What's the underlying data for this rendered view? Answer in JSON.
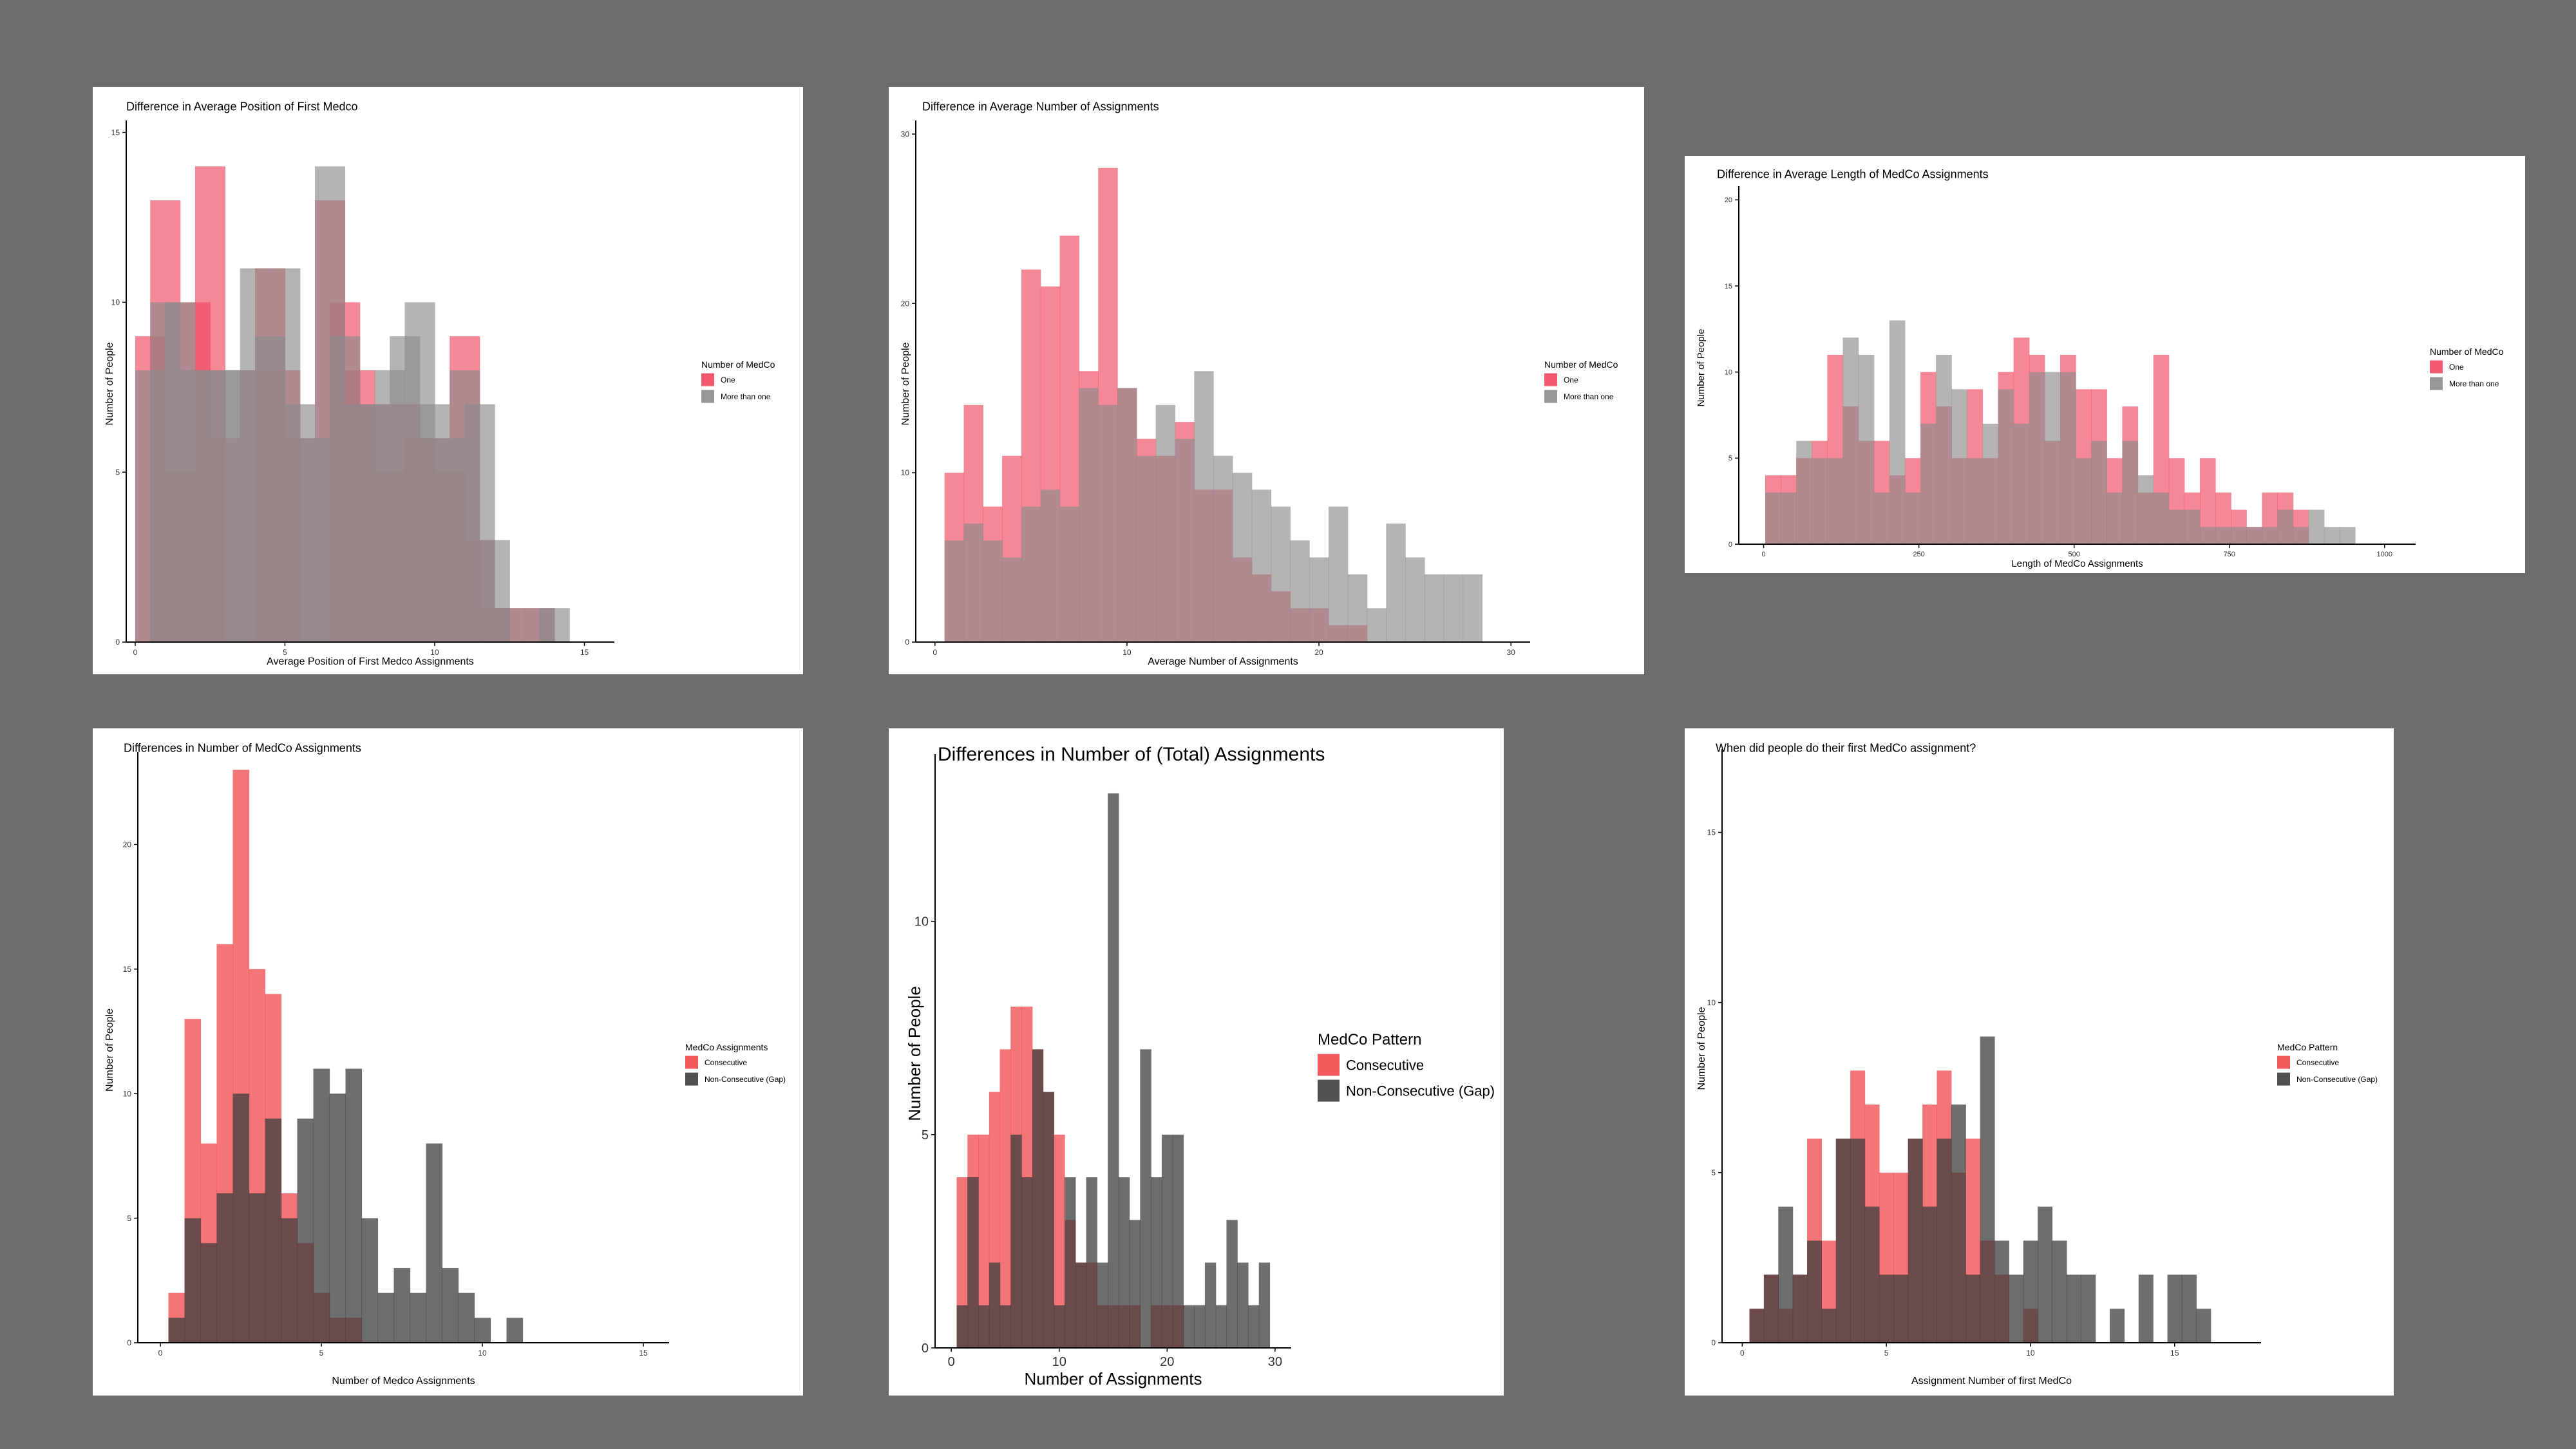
{
  "chart_data": [
    {
      "type": "bar",
      "title": "Difference in Average Position of First Medco",
      "xlabel": "Average Position of First Medco Assignments",
      "ylabel": "Number of People",
      "xlim": [
        -0.3,
        16
      ],
      "ylim": [
        0,
        15.2
      ],
      "xticks": [
        "0",
        "5",
        "10",
        "15"
      ],
      "xtick_values": [
        0,
        5,
        10,
        15
      ],
      "yticks": [
        "0",
        "5",
        "10",
        "15"
      ],
      "ytick_values": [
        0,
        5,
        10,
        15
      ],
      "grid": false,
      "legend_title": "Number of MedCo",
      "legend_position": "right",
      "series": [
        {
          "name": "One",
          "color": "#f0485f",
          "x": [
            0.5,
            1,
            1.5,
            2,
            2.5,
            3,
            3.5,
            4,
            4.5,
            5,
            5.5,
            6,
            6.5,
            7,
            7.5,
            8,
            8.5,
            9,
            9.5,
            10,
            10.5,
            11,
            11.5,
            12,
            12.5,
            13,
            13.5,
            14
          ],
          "values": [
            9,
            13,
            5,
            10,
            14,
            6,
            0,
            8,
            11,
            8,
            6,
            0,
            13,
            10,
            8,
            7,
            5,
            7,
            6,
            6,
            5,
            9,
            3,
            1,
            1,
            0,
            1,
            0
          ]
        },
        {
          "name": "More than one",
          "color": "#8c8c8c",
          "x": [
            0.5,
            1,
            1.5,
            2,
            2.5,
            3,
            3.5,
            4,
            4.5,
            5,
            5.5,
            6,
            6.5,
            7,
            7.5,
            8,
            8.5,
            9,
            9.5,
            10,
            10.5,
            11,
            11.5,
            12,
            12.5,
            13,
            13.5,
            14
          ],
          "values": [
            8,
            10,
            10,
            8,
            8,
            8,
            8,
            11,
            9,
            11,
            7,
            6,
            14,
            9,
            7,
            7,
            8,
            9,
            10,
            7,
            6,
            8,
            7,
            3,
            1,
            0,
            1,
            1
          ]
        }
      ]
    },
    {
      "type": "bar",
      "title": "Difference in Average Number of Assignments",
      "xlabel": "Average Number of Assignments",
      "ylabel": "Number of People",
      "xlim": [
        -1,
        31
      ],
      "ylim": [
        0,
        30.5
      ],
      "xticks": [
        "0",
        "10",
        "20",
        "30"
      ],
      "xtick_values": [
        0,
        10,
        20,
        30
      ],
      "yticks": [
        "0",
        "10",
        "20",
        "30"
      ],
      "ytick_values": [
        0,
        10,
        20,
        30
      ],
      "grid": false,
      "legend_title": "Number of MedCo",
      "legend_position": "right",
      "series": [
        {
          "name": "One",
          "color": "#f0485f",
          "x": [
            1,
            2,
            3,
            4,
            5,
            6,
            7,
            8,
            9,
            10,
            11,
            12,
            13,
            14,
            15,
            16,
            17,
            18,
            19,
            20,
            21,
            22,
            23,
            24,
            25,
            26,
            27,
            28
          ],
          "values": [
            10,
            14,
            8,
            11,
            22,
            21,
            24,
            16,
            28,
            15,
            12,
            11,
            13,
            9,
            9,
            5,
            4,
            3,
            2,
            2,
            1,
            1,
            0,
            0,
            0,
            0,
            0,
            0
          ]
        },
        {
          "name": "More than one",
          "color": "#8c8c8c",
          "x": [
            1,
            2,
            3,
            4,
            5,
            6,
            7,
            8,
            9,
            10,
            11,
            12,
            13,
            14,
            15,
            16,
            17,
            18,
            19,
            20,
            21,
            22,
            23,
            24,
            25,
            26,
            27,
            28
          ],
          "values": [
            6,
            7,
            6,
            5,
            8,
            9,
            8,
            15,
            14,
            15,
            11,
            14,
            12,
            16,
            11,
            10,
            9,
            8,
            6,
            5,
            8,
            4,
            2,
            7,
            5,
            4,
            4,
            4
          ]
        }
      ]
    },
    {
      "type": "bar",
      "title": "Difference in Average Length of MedCo Assignments",
      "xlabel": "Length of MedCo Assignments",
      "ylabel": "Number of People",
      "xlim": [
        -40,
        1050
      ],
      "ylim": [
        0,
        20.5
      ],
      "xticks": [
        "0",
        "250",
        "500",
        "750",
        "1000"
      ],
      "xtick_values": [
        0,
        250,
        500,
        750,
        1000
      ],
      "yticks": [
        "0",
        "5",
        "10",
        "15",
        "20"
      ],
      "ytick_values": [
        0,
        5,
        10,
        15,
        20
      ],
      "grid": false,
      "legend_title": "Number of MedCo",
      "legend_position": "right",
      "series": [
        {
          "name": "One",
          "color": "#f0485f",
          "x": [
            15,
            40,
            65,
            90,
            115,
            140,
            165,
            190,
            215,
            240,
            265,
            290,
            315,
            340,
            365,
            390,
            415,
            440,
            465,
            490,
            515,
            540,
            565,
            590,
            615,
            640,
            665,
            690,
            715,
            740,
            765,
            790,
            815,
            840,
            865,
            890,
            915,
            940
          ],
          "values": [
            4,
            4,
            5,
            6,
            11,
            8,
            6,
            6,
            4,
            5,
            10,
            8,
            5,
            9,
            5,
            10,
            12,
            11,
            6,
            11,
            9,
            9,
            5,
            8,
            3,
            11,
            5,
            3,
            5,
            3,
            2,
            1,
            3,
            3,
            2,
            0,
            0,
            0
          ]
        },
        {
          "name": "More than one",
          "color": "#8c8c8c",
          "x": [
            15,
            40,
            65,
            90,
            115,
            140,
            165,
            190,
            215,
            240,
            265,
            290,
            315,
            340,
            365,
            390,
            415,
            440,
            465,
            490,
            515,
            540,
            565,
            590,
            615,
            640,
            665,
            690,
            715,
            740,
            765,
            790,
            815,
            840,
            865,
            890,
            915,
            940
          ],
          "values": [
            3,
            3,
            6,
            5,
            5,
            12,
            11,
            3,
            13,
            3,
            7,
            11,
            9,
            5,
            7,
            9,
            7,
            10,
            10,
            10,
            5,
            6,
            3,
            6,
            4,
            3,
            2,
            2,
            1,
            1,
            1,
            1,
            1,
            2,
            1,
            2,
            1,
            1
          ]
        }
      ]
    },
    {
      "type": "bar",
      "title": "Differences in Number of MedCo Assignments",
      "xlabel": "Number of Medco Assignments",
      "ylabel": "Number of People",
      "xlim": [
        -0.7,
        15.8
      ],
      "ylim": [
        0,
        23.5
      ],
      "xticks": [
        "0",
        "5",
        "10",
        "15"
      ],
      "xtick_values": [
        0,
        5,
        10,
        15
      ],
      "yticks": [
        "0",
        "5",
        "10",
        "15",
        "20"
      ],
      "ytick_values": [
        0,
        5,
        10,
        15,
        20
      ],
      "grid": false,
      "legend_title": "MedCo Assignments",
      "legend_position": "right",
      "series": [
        {
          "name": "Consecutive",
          "color": "#f0474a",
          "x": [
            0.5,
            1,
            1.5,
            2,
            2.5,
            3,
            3.5,
            4,
            4.5,
            5,
            5.5,
            6,
            6.5,
            7,
            7.5,
            8,
            8.5,
            9,
            9.5,
            10,
            10.5,
            11
          ],
          "values": [
            2,
            13,
            8,
            16,
            23,
            15,
            14,
            6,
            4,
            2,
            1,
            1,
            0,
            0,
            0,
            0,
            0,
            0,
            0,
            0,
            0,
            0
          ]
        },
        {
          "name": "Non-Consecutive (Gap)",
          "color": "#3d3d3d",
          "x": [
            0.5,
            1,
            1.5,
            2,
            2.5,
            3,
            3.5,
            4,
            4.5,
            5,
            5.5,
            6,
            6.5,
            7,
            7.5,
            8,
            8.5,
            9,
            9.5,
            10,
            10.5,
            11
          ],
          "values": [
            1,
            5,
            4,
            6,
            10,
            6,
            9,
            5,
            9,
            11,
            10,
            11,
            5,
            2,
            3,
            2,
            8,
            3,
            2,
            1,
            0,
            1
          ]
        }
      ]
    },
    {
      "type": "bar",
      "title": "Differences in Number of (Total) Assignments",
      "xlabel": "Number of Assignments",
      "ylabel": "Number of People",
      "xlim": [
        -1.5,
        31.5
      ],
      "ylim": [
        0,
        13.8
      ],
      "xticks": [
        "0",
        "10",
        "20",
        "30"
      ],
      "xtick_values": [
        0,
        10,
        20,
        30
      ],
      "yticks": [
        "0",
        "5",
        "10"
      ],
      "ytick_values": [
        0,
        5,
        10
      ],
      "grid": false,
      "legend_title": "MedCo Pattern",
      "legend_position": "right",
      "series": [
        {
          "name": "Consecutive",
          "color": "#f0474a",
          "x": [
            1,
            2,
            3,
            4,
            5,
            6,
            7,
            8,
            9,
            10,
            11,
            12,
            13,
            14,
            15,
            16,
            17,
            18,
            19,
            20,
            21,
            22,
            23,
            24,
            25,
            26,
            27,
            28,
            29
          ],
          "values": [
            4,
            5,
            5,
            6,
            7,
            8,
            8,
            7,
            6,
            5,
            3,
            2,
            2,
            1,
            1,
            1,
            1,
            0,
            1,
            1,
            1,
            0,
            0,
            0,
            0,
            0,
            0,
            0,
            0
          ]
        },
        {
          "name": "Non-Consecutive (Gap)",
          "color": "#3d3d3d",
          "x": [
            1,
            2,
            3,
            4,
            5,
            6,
            7,
            8,
            9,
            10,
            11,
            12,
            13,
            14,
            15,
            16,
            17,
            18,
            19,
            20,
            21,
            22,
            23,
            24,
            25,
            26,
            27,
            28,
            29
          ],
          "values": [
            1,
            4,
            1,
            2,
            1,
            5,
            4,
            7,
            6,
            1,
            4,
            2,
            4,
            2,
            13,
            4,
            3,
            7,
            4,
            5,
            5,
            1,
            1,
            2,
            1,
            3,
            2,
            1,
            2
          ]
        }
      ]
    },
    {
      "type": "bar",
      "title": "When did people do their first MedCo assignment?",
      "xlabel": "Assignment Number of first MedCo",
      "ylabel": "Number of People",
      "xlim": [
        -0.7,
        18
      ],
      "ylim": [
        0,
        17.3
      ],
      "xticks": [
        "0",
        "5",
        "10",
        "15"
      ],
      "xtick_values": [
        0,
        5,
        10,
        15
      ],
      "yticks": [
        "0",
        "5",
        "10",
        "15"
      ],
      "ytick_values": [
        0,
        5,
        10,
        15
      ],
      "grid": false,
      "legend_title": "MedCo Pattern",
      "legend_position": "right",
      "series": [
        {
          "name": "Consecutive",
          "color": "#f0474a",
          "x": [
            0.5,
            1,
            1.5,
            2,
            2.5,
            3,
            3.5,
            4,
            4.5,
            5,
            5.5,
            6,
            6.5,
            7,
            7.5,
            8,
            8.5,
            9,
            9.5,
            10,
            10.5,
            11,
            11.5,
            12,
            12.5,
            13,
            13.5,
            14,
            14.5,
            15,
            15.5,
            16
          ],
          "values": [
            1,
            2,
            1,
            2,
            6,
            3,
            6,
            8,
            7,
            5,
            5,
            6,
            7,
            8,
            5,
            6,
            3,
            2,
            0,
            1,
            0,
            0,
            0,
            0,
            0,
            0,
            0,
            0,
            0,
            0,
            0,
            0
          ]
        },
        {
          "name": "Non-Consecutive (Gap)",
          "color": "#3d3d3d",
          "x": [
            0.5,
            1,
            1.5,
            2,
            2.5,
            3,
            3.5,
            4,
            4.5,
            5,
            5.5,
            6,
            6.5,
            7,
            7.5,
            8,
            8.5,
            9,
            9.5,
            10,
            10.5,
            11,
            11.5,
            12,
            12.5,
            13,
            13.5,
            14,
            14.5,
            15,
            15.5,
            16
          ],
          "values": [
            1,
            2,
            4,
            2,
            3,
            1,
            6,
            6,
            4,
            2,
            2,
            6,
            4,
            6,
            7,
            2,
            9,
            3,
            2,
            3,
            4,
            3,
            2,
            2,
            0,
            1,
            0,
            2,
            0,
            2,
            2,
            1
          ]
        }
      ]
    }
  ]
}
